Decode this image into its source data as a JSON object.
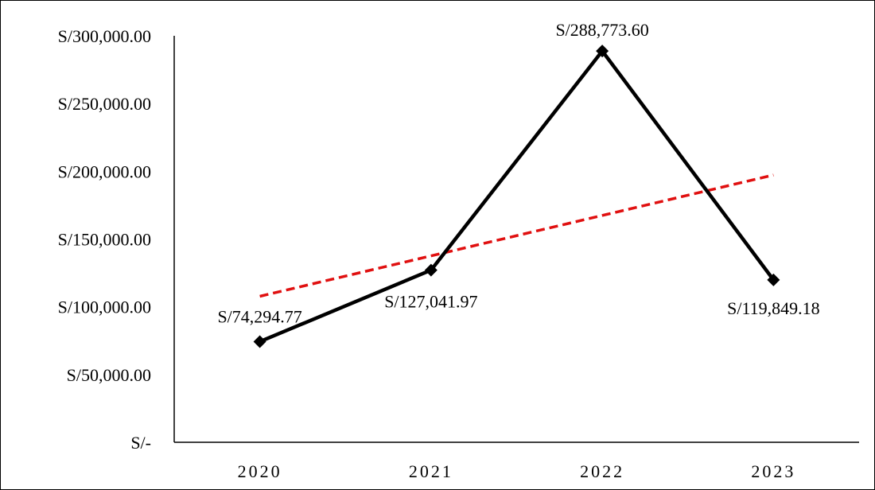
{
  "chart_data": {
    "type": "line",
    "categories": [
      "2020",
      "2021",
      "2022",
      "2023"
    ],
    "series": [
      {
        "values": [
          74294.77,
          127041.97,
          288773.6,
          119849.18
        ],
        "data_labels": [
          "S/74,294.77",
          "S/127,041.97",
          "S/288,773.60",
          "S/119,849.18"
        ],
        "color": "#000000",
        "marker": "diamond"
      }
    ],
    "trendline": {
      "type": "linear",
      "color": "#e01010",
      "style": "dashed"
    },
    "y_tick_labels": [
      "S/-",
      "S/50,000.00",
      "S/100,000.00",
      "S/150,000.00",
      "S/200,000.00",
      "S/250,000.00",
      "S/300,000.00"
    ],
    "yticks": [
      0,
      50000,
      100000,
      150000,
      200000,
      250000,
      300000
    ],
    "ylim": [
      0,
      300000
    ],
    "grid": false,
    "legend": "none",
    "title": "",
    "xlabel": "",
    "ylabel": ""
  }
}
